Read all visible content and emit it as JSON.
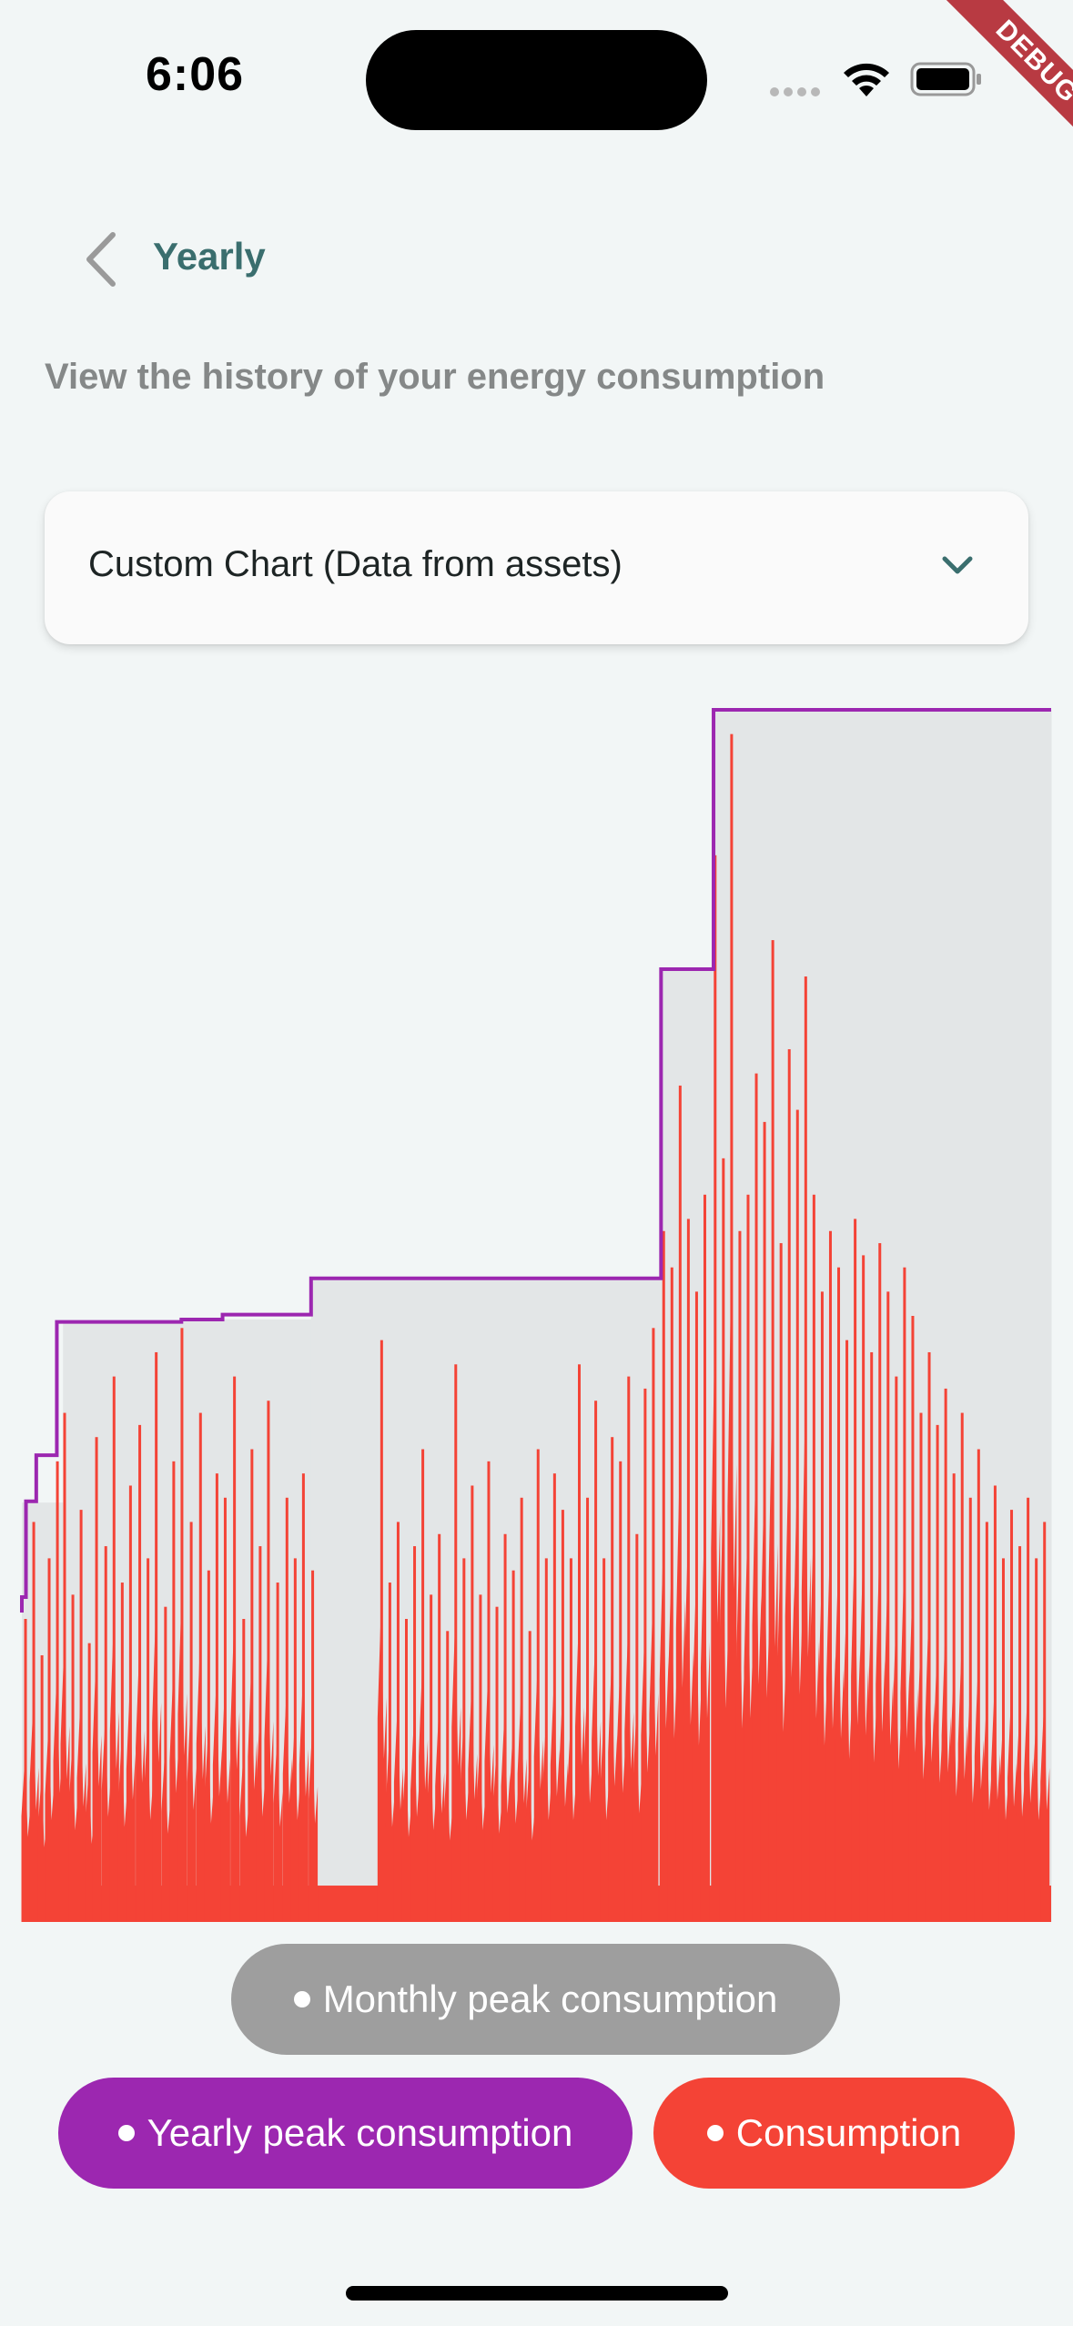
{
  "status_bar": {
    "time": "6:06"
  },
  "debug_banner": {
    "label": "DEBUG"
  },
  "header": {
    "back_icon": "chevron-left-icon",
    "title": "Yearly"
  },
  "subtitle": "View the history of your energy consumption",
  "dropdown": {
    "selected": "Custom Chart (Data from assets)",
    "icon": "chevron-down-icon"
  },
  "legend": {
    "monthly_peak": {
      "label": "Monthly peak consumption",
      "color": "#9e9e9e"
    },
    "yearly_peak": {
      "label": "Yearly peak consumption",
      "color": "#9c27b0"
    },
    "consumption": {
      "label": "Consumption",
      "color": "#f44336"
    }
  },
  "chart_data": {
    "type": "area",
    "title": "",
    "xlabel": "",
    "ylabel": "",
    "grid": false,
    "legend_position": "bottom",
    "monthly_peak_fill": "#e3e6e7",
    "series": [
      {
        "name": "Yearly peak consumption",
        "color": "#9c27b0",
        "step_segments": [
          {
            "x_start": 0.0,
            "x_end": 0.004,
            "value": 0.268
          },
          {
            "x_start": 0.004,
            "x_end": 0.014,
            "value": 0.347
          },
          {
            "x_start": 0.014,
            "x_end": 0.034,
            "value": 0.385
          },
          {
            "x_start": 0.034,
            "x_end": 0.155,
            "value": 0.495
          },
          {
            "x_start": 0.155,
            "x_end": 0.195,
            "value": 0.497
          },
          {
            "x_start": 0.195,
            "x_end": 0.281,
            "value": 0.501
          },
          {
            "x_start": 0.281,
            "x_end": 0.362,
            "value": 0.531
          },
          {
            "x_start": 0.362,
            "x_end": 0.621,
            "value": 0.531
          },
          {
            "x_start": 0.621,
            "x_end": 0.672,
            "value": 0.786
          },
          {
            "x_start": 0.672,
            "x_end": 1.0,
            "value": 1.0
          }
        ]
      },
      {
        "name": "Monthly peak consumption",
        "color": "#9e9e9e",
        "step_segments": [
          {
            "x_start": 0.0,
            "x_end": 0.04,
            "value": 0.346
          },
          {
            "x_start": 0.04,
            "x_end": 0.155,
            "value": 0.495
          },
          {
            "x_start": 0.155,
            "x_end": 0.281,
            "value": 0.497
          },
          {
            "x_start": 0.281,
            "x_end": 0.621,
            "value": 0.531
          },
          {
            "x_start": 0.621,
            "x_end": 0.672,
            "value": 0.786
          },
          {
            "x_start": 0.672,
            "x_end": 1.0,
            "value": 1.0
          }
        ]
      },
      {
        "name": "Consumption",
        "color": "#f44336",
        "baseline": 0.03,
        "peaks": [
          [
            0.004,
            0.25
          ],
          [
            0.012,
            0.33
          ],
          [
            0.02,
            0.22
          ],
          [
            0.027,
            0.3
          ],
          [
            0.035,
            0.38
          ],
          [
            0.042,
            0.42
          ],
          [
            0.05,
            0.27
          ],
          [
            0.058,
            0.34
          ],
          [
            0.066,
            0.23
          ],
          [
            0.073,
            0.4
          ],
          [
            0.082,
            0.31
          ],
          [
            0.09,
            0.45
          ],
          [
            0.098,
            0.28
          ],
          [
            0.106,
            0.36
          ],
          [
            0.115,
            0.41
          ],
          [
            0.123,
            0.3
          ],
          [
            0.131,
            0.47
          ],
          [
            0.14,
            0.26
          ],
          [
            0.148,
            0.38
          ],
          [
            0.156,
            0.49
          ],
          [
            0.165,
            0.33
          ],
          [
            0.174,
            0.42
          ],
          [
            0.182,
            0.29
          ],
          [
            0.19,
            0.37
          ],
          [
            0.198,
            0.35
          ],
          [
            0.207,
            0.45
          ],
          [
            0.216,
            0.25
          ],
          [
            0.224,
            0.39
          ],
          [
            0.232,
            0.31
          ],
          [
            0.24,
            0.43
          ],
          [
            0.249,
            0.28
          ],
          [
            0.258,
            0.35
          ],
          [
            0.266,
            0.3
          ],
          [
            0.274,
            0.37
          ],
          [
            0.283,
            0.29
          ],
          [
            0.35,
            0.48
          ],
          [
            0.358,
            0.28
          ],
          [
            0.366,
            0.33
          ],
          [
            0.374,
            0.25
          ],
          [
            0.382,
            0.31
          ],
          [
            0.39,
            0.39
          ],
          [
            0.398,
            0.27
          ],
          [
            0.406,
            0.32
          ],
          [
            0.414,
            0.24
          ],
          [
            0.422,
            0.46
          ],
          [
            0.43,
            0.3
          ],
          [
            0.438,
            0.36
          ],
          [
            0.446,
            0.27
          ],
          [
            0.454,
            0.38
          ],
          [
            0.462,
            0.26
          ],
          [
            0.47,
            0.32
          ],
          [
            0.478,
            0.29
          ],
          [
            0.486,
            0.35
          ],
          [
            0.494,
            0.24
          ],
          [
            0.502,
            0.39
          ],
          [
            0.51,
            0.3
          ],
          [
            0.518,
            0.37
          ],
          [
            0.526,
            0.34
          ],
          [
            0.534,
            0.3
          ],
          [
            0.542,
            0.46
          ],
          [
            0.55,
            0.35
          ],
          [
            0.558,
            0.43
          ],
          [
            0.566,
            0.3
          ],
          [
            0.574,
            0.4
          ],
          [
            0.582,
            0.38
          ],
          [
            0.59,
            0.45
          ],
          [
            0.598,
            0.32
          ],
          [
            0.606,
            0.44
          ],
          [
            0.614,
            0.49
          ],
          [
            0.624,
            0.57
          ],
          [
            0.632,
            0.54
          ],
          [
            0.64,
            0.69
          ],
          [
            0.648,
            0.58
          ],
          [
            0.656,
            0.52
          ],
          [
            0.664,
            0.6
          ],
          [
            0.674,
            0.88
          ],
          [
            0.682,
            0.63
          ],
          [
            0.69,
            0.98
          ],
          [
            0.698,
            0.57
          ],
          [
            0.706,
            0.6
          ],
          [
            0.714,
            0.7
          ],
          [
            0.722,
            0.66
          ],
          [
            0.73,
            0.81
          ],
          [
            0.738,
            0.56
          ],
          [
            0.746,
            0.72
          ],
          [
            0.754,
            0.67
          ],
          [
            0.762,
            0.78
          ],
          [
            0.77,
            0.6
          ],
          [
            0.778,
            0.52
          ],
          [
            0.786,
            0.57
          ],
          [
            0.794,
            0.54
          ],
          [
            0.802,
            0.48
          ],
          [
            0.81,
            0.58
          ],
          [
            0.818,
            0.55
          ],
          [
            0.826,
            0.47
          ],
          [
            0.834,
            0.56
          ],
          [
            0.842,
            0.52
          ],
          [
            0.85,
            0.45
          ],
          [
            0.858,
            0.54
          ],
          [
            0.866,
            0.5
          ],
          [
            0.874,
            0.42
          ],
          [
            0.882,
            0.47
          ],
          [
            0.89,
            0.41
          ],
          [
            0.898,
            0.44
          ],
          [
            0.906,
            0.37
          ],
          [
            0.914,
            0.42
          ],
          [
            0.922,
            0.35
          ],
          [
            0.93,
            0.39
          ],
          [
            0.938,
            0.33
          ],
          [
            0.946,
            0.36
          ],
          [
            0.954,
            0.3
          ],
          [
            0.962,
            0.34
          ],
          [
            0.97,
            0.31
          ],
          [
            0.978,
            0.35
          ],
          [
            0.986,
            0.3
          ],
          [
            0.994,
            0.33
          ]
        ]
      }
    ]
  }
}
